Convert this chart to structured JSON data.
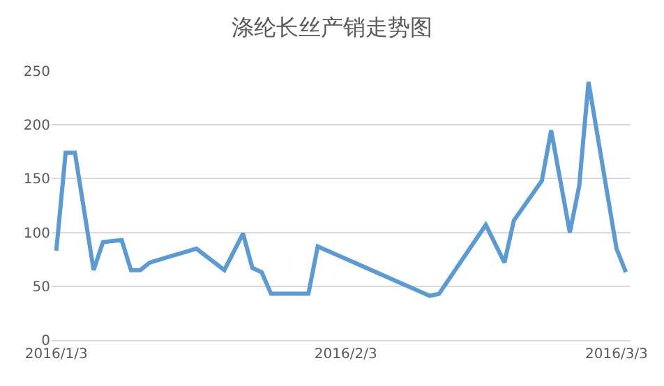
{
  "chart_data": {
    "type": "line",
    "title": "涤纶长丝产销走势图",
    "x": [
      "2016-01-03",
      "2016-01-04",
      "2016-01-05",
      "2016-01-07",
      "2016-01-08",
      "2016-01-10",
      "2016-01-11",
      "2016-01-12",
      "2016-01-13",
      "2016-01-18",
      "2016-01-21",
      "2016-01-23",
      "2016-01-24",
      "2016-01-25",
      "2016-01-26",
      "2016-01-30",
      "2016-01-31",
      "2016-02-12",
      "2016-02-13",
      "2016-02-18",
      "2016-02-20",
      "2016-02-21",
      "2016-02-24",
      "2016-02-25",
      "2016-02-27",
      "2016-02-28",
      "2016-02-29",
      "2016-03-03",
      "2016-03-04"
    ],
    "series": [
      {
        "color": "#5b9bd5",
        "values": [
          83,
          174,
          174,
          65,
          91,
          93,
          65,
          65,
          72,
          85,
          65,
          99,
          67,
          63,
          43,
          43,
          87,
          41,
          43,
          107,
          72,
          111,
          148,
          195,
          100,
          143,
          240,
          85,
          63
        ]
      }
    ],
    "xlim": [
      "2016-01-02T12:00",
      "2016-03-04T12:00"
    ],
    "xticks": [
      {
        "value": "2016-01-03",
        "label": "2016/1/3"
      },
      {
        "value": "2016-02-03",
        "label": "2016/2/3"
      },
      {
        "value": "2016-03-03",
        "label": "2016/3/3"
      }
    ],
    "ylim": [
      0,
      250
    ],
    "yticks": [
      0,
      50,
      100,
      150,
      200,
      250
    ],
    "grid": "y",
    "marker": "none",
    "line_style": "solid"
  }
}
